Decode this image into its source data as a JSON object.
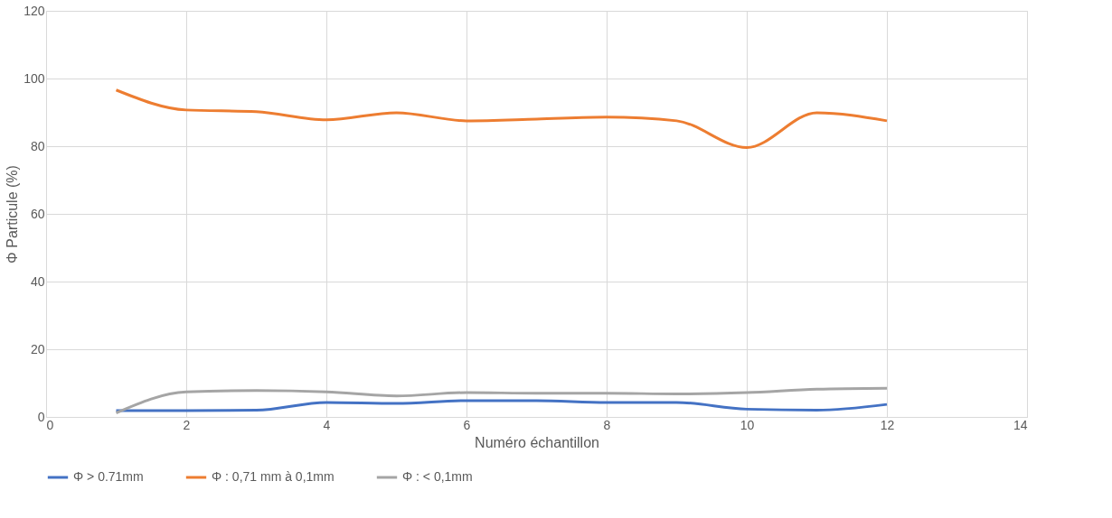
{
  "chart_data": {
    "type": "line",
    "xlabel": "Numéro échantillon",
    "ylabel": "Φ Particule (%)",
    "x": [
      1,
      2,
      3,
      4,
      5,
      6,
      7,
      8,
      9,
      10,
      11,
      12
    ],
    "xlim": [
      0,
      14
    ],
    "xticks": [
      0,
      2,
      4,
      6,
      8,
      10,
      12,
      14
    ],
    "ylim": [
      0,
      120
    ],
    "yticks": [
      0,
      20,
      40,
      60,
      80,
      100,
      120
    ],
    "grid": true,
    "legend": "bottom",
    "marker": "none",
    "line_style": "solid",
    "series": [
      {
        "name": "Φ > 0.71mm",
        "color": "#4472c4",
        "values": [
          1.9,
          1.9,
          2.0,
          4.3,
          4.0,
          4.8,
          4.8,
          4.3,
          4.3,
          2.3,
          2.0,
          3.7
        ]
      },
      {
        "name": "Φ : 0,71 mm à 0,1mm",
        "color": "#ed7d31",
        "values": [
          96.6,
          90.7,
          90.2,
          87.8,
          89.9,
          87.5,
          88.0,
          88.6,
          87.5,
          79.6,
          89.9,
          87.5
        ]
      },
      {
        "name": "Φ : < 0,1mm",
        "color": "#a5a5a5",
        "values": [
          1.2,
          7.4,
          7.8,
          7.4,
          6.2,
          7.2,
          7.0,
          7.0,
          6.8,
          7.2,
          8.2,
          8.5
        ]
      }
    ]
  }
}
